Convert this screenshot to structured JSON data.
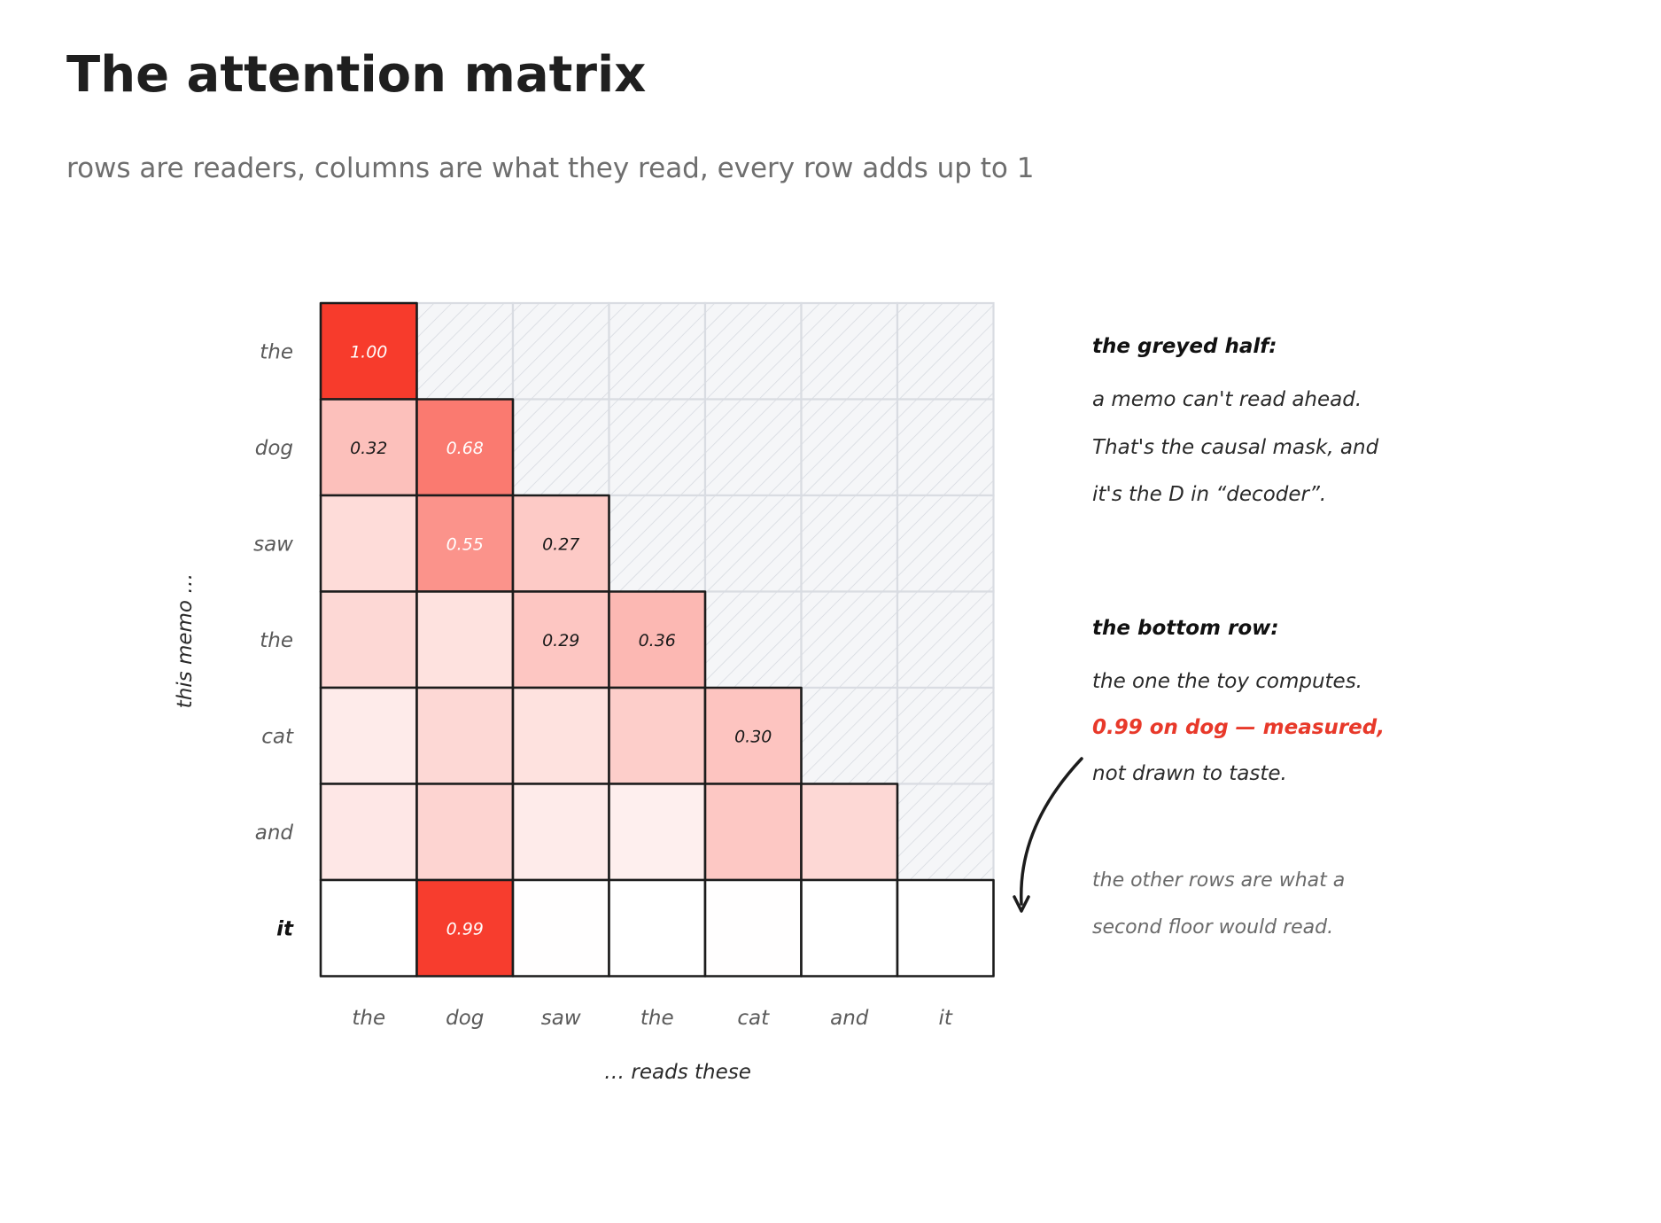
{
  "header": {
    "title": "The attention matrix",
    "subtitle": "rows are readers, columns are what they read, every row adds up to 1"
  },
  "chart_data": {
    "type": "heatmap",
    "tokens": [
      "the",
      "dog",
      "saw",
      "the",
      "cat",
      "and",
      "it"
    ],
    "x_tick_labels": [
      "the",
      "dog",
      "saw",
      "the",
      "cat",
      "and",
      "it"
    ],
    "y_tick_labels": [
      "the",
      "dog",
      "saw",
      "the",
      "cat",
      "and",
      "it"
    ],
    "xlabel": "… reads these",
    "ylabel": "this memo …",
    "highlighted_row": 6,
    "masked": "upper triangle (future tokens) shown greyed and hatched",
    "weights": [
      [
        1.0,
        null,
        null,
        null,
        null,
        null,
        null
      ],
      [
        0.32,
        0.68,
        null,
        null,
        null,
        null,
        null
      ],
      [
        0.18,
        0.55,
        0.27,
        null,
        null,
        null,
        null
      ],
      [
        0.2,
        0.15,
        0.29,
        0.36,
        null,
        null,
        null
      ],
      [
        0.1,
        0.2,
        0.15,
        0.25,
        0.3,
        null,
        null
      ],
      [
        0.12,
        0.22,
        0.1,
        0.08,
        0.28,
        0.2,
        null
      ],
      [
        0.0,
        0.99,
        0.005,
        0.0,
        0.005,
        0.0,
        0.0
      ]
    ],
    "cell_labels": [
      [
        "1.00",
        "",
        "",
        "",
        "",
        "",
        ""
      ],
      [
        "0.32",
        "0.68",
        "",
        "",
        "",
        "",
        ""
      ],
      [
        "",
        "0.55",
        "0.27",
        "",
        "",
        "",
        ""
      ],
      [
        "",
        "",
        "0.29",
        "0.36",
        "",
        "",
        ""
      ],
      [
        "",
        "",
        "",
        "",
        "0.30",
        "",
        ""
      ],
      [
        "",
        "",
        "",
        "",
        "",
        "",
        ""
      ],
      [
        "",
        "0.99",
        "",
        "",
        "",
        "",
        ""
      ]
    ],
    "colors": {
      "heat": "#f73b2c",
      "mask_fill": "#f5f6f8",
      "mask_hatch": "#d3d7de",
      "grid_line": "#1c1c1c",
      "annotation_red": "#e8392a"
    }
  },
  "annotations": {
    "greyed_heading": "the greyed half:",
    "greyed_lines": [
      "a memo can't read ahead.",
      "That's the causal mask, and",
      "it's the D in “decoder”."
    ],
    "bottom_heading": "the bottom row:",
    "bottom_line_1": "the one the toy computes.",
    "bottom_highlight": "0.99 on dog — measured,",
    "bottom_line_2": "not drawn to taste.",
    "other_lines": [
      "the other rows are what a",
      "second floor would read."
    ]
  }
}
